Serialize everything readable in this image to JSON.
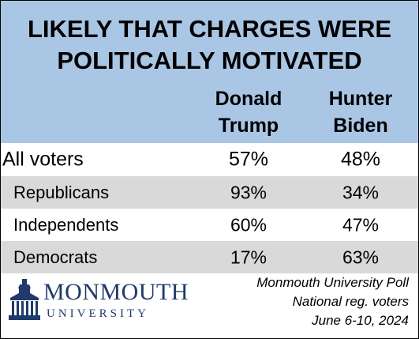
{
  "chart_data": {
    "type": "table",
    "title": [
      "LIKELY THAT CHARGES WERE",
      "POLITICALLY MOTIVATED"
    ],
    "columns": [
      {
        "line1": "Donald",
        "line2": "Trump"
      },
      {
        "line1": "Hunter",
        "line2": "Biden"
      }
    ],
    "rows": [
      {
        "label": "All voters",
        "values": [
          "57%",
          "48%"
        ]
      },
      {
        "label": "Republicans",
        "values": [
          "93%",
          "34%"
        ]
      },
      {
        "label": "Independents",
        "values": [
          "60%",
          "47%"
        ]
      },
      {
        "label": "Democrats",
        "values": [
          "17%",
          "63%"
        ]
      }
    ]
  },
  "logo": {
    "name": "MONMOUTH",
    "sub": "UNIVERSITY"
  },
  "source": [
    "Monmouth University Poll",
    "National reg. voters",
    "June 6-10, 2024"
  ],
  "colors": {
    "header": "#a9c6e4",
    "shaded_row": "#d9d9d9",
    "logo": "#1f3a6b"
  }
}
